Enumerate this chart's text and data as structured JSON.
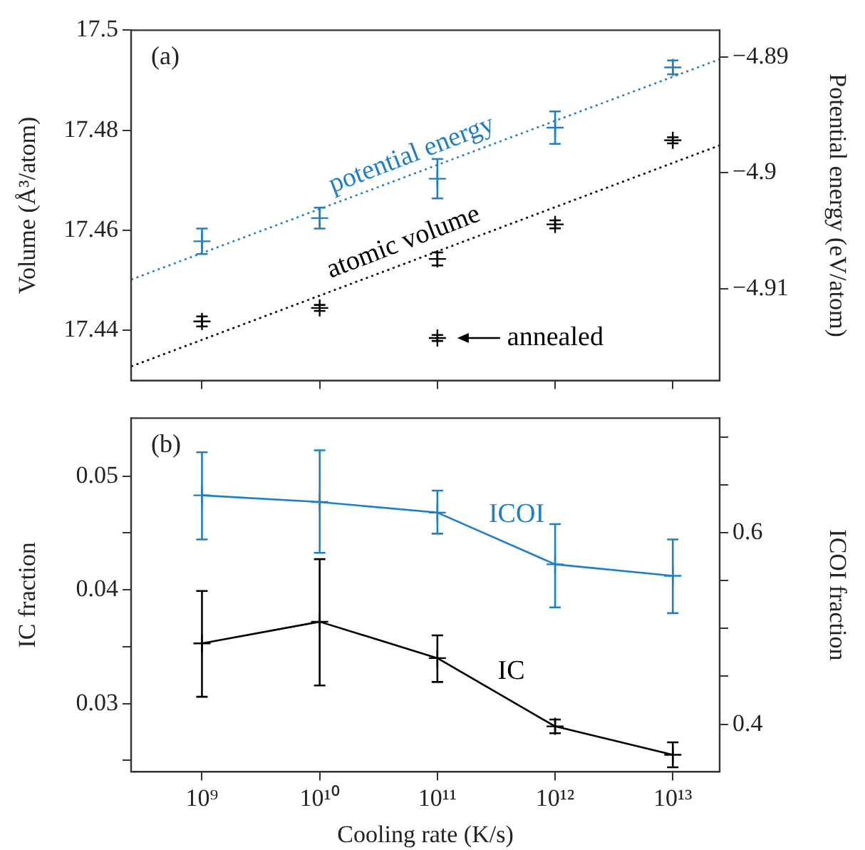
{
  "chart_data": [
    {
      "type": "scatter",
      "title": "(a)",
      "ylabel": "Volume (Å³/atom)",
      "y2label": "Potential energy (eV/atom)",
      "log": "x",
      "marker": "cross",
      "tick_labels": "y",
      "x": [
        1000000000.0,
        10000000000.0,
        100000000000.0,
        1000000000000.0,
        10000000000000.0
      ],
      "xlim": [
        250000000.0,
        25000000000000.0
      ],
      "xticks": [
        {
          "value": 1000000000.0,
          "label": null
        },
        {
          "value": 10000000000.0,
          "label": null
        },
        {
          "value": 100000000000.0,
          "label": null
        },
        {
          "value": 1000000000000.0,
          "label": null
        },
        {
          "value": 10000000000000.0,
          "label": null
        }
      ],
      "ylim": [
        17.43,
        17.5
      ],
      "yticks": [
        17.44,
        17.46,
        17.48,
        17.5
      ],
      "y2lim": [
        -4.9179,
        -4.8877
      ],
      "y2ticks": [
        {
          "value": -4.91,
          "label": "−4.91"
        },
        {
          "value": -4.9,
          "label": "−4.9"
        },
        {
          "value": -4.89,
          "label": "−4.89"
        }
      ],
      "series": [
        {
          "name": "atomic volume",
          "color": "#000000",
          "values": [
            17.4418,
            17.4445,
            17.4543,
            17.4612,
            17.478
          ],
          "errors": [
            0.001,
            0.0006,
            0.0013,
            0.0008,
            0.0006
          ]
        },
        {
          "name": "annealed",
          "color": "#000000",
          "x": [
            100000000000.0
          ],
          "values": [
            17.4385
          ],
          "errors": [
            0.0006
          ]
        },
        {
          "name": "potential energy",
          "color": "#1f7ec8",
          "axis": "y2",
          "values": [
            -4.9059,
            -4.9039,
            -4.9005,
            -4.8961,
            -4.8909
          ],
          "errors": [
            0.0011,
            0.0009,
            0.0017,
            0.0014,
            0.0006
          ]
        },
        {
          "type": "line",
          "color": "#000000",
          "marker": "none",
          "line_style": "dotted",
          "x": [
            250000000.0,
            25000000000000.0
          ],
          "values": [
            17.4328,
            17.477
          ]
        },
        {
          "type": "line",
          "color": "#1f7ec8",
          "marker": "none",
          "line_style": "dotted",
          "axis": "y2",
          "x": [
            250000000.0,
            25000000000000.0
          ],
          "values": [
            -4.9092,
            -4.8902
          ]
        }
      ]
    },
    {
      "type": "line",
      "title": "(b)",
      "xlabel": "Cooling rate (K/s)",
      "ylabel": "IC fraction",
      "y2label": "ICOI fraction",
      "log": "x",
      "marker": "cross",
      "x": [
        1000000000.0,
        10000000000.0,
        100000000000.0,
        1000000000000.0,
        10000000000000.0
      ],
      "xlim": [
        250000000.0,
        25000000000000.0
      ],
      "xticks": [
        {
          "value": 1000000000.0,
          "label": "10⁹"
        },
        {
          "value": 10000000000.0,
          "label": "10¹⁰"
        },
        {
          "value": 100000000000.0,
          "label": "10¹¹"
        },
        {
          "value": 1000000000000.0,
          "label": "10¹²"
        },
        {
          "value": 10000000000000.0,
          "label": "10¹³"
        }
      ],
      "ylim": [
        0.024,
        0.0551
      ],
      "yticks": [
        {
          "value": 0.025,
          "label": null
        },
        0.03,
        {
          "value": 0.035,
          "label": null
        },
        0.04,
        {
          "value": 0.045,
          "label": null
        },
        0.05
      ],
      "y2lim": [
        0.3503,
        0.7196
      ],
      "y2ticks": [
        0.4,
        {
          "value": 0.45,
          "label": null
        },
        {
          "value": 0.5,
          "label": null
        },
        {
          "value": 0.55,
          "label": null
        },
        0.6,
        {
          "value": 0.65,
          "label": null
        },
        {
          "value": 0.7,
          "label": null
        }
      ],
      "series": [
        {
          "name": "IC",
          "color": "#000000",
          "values": [
            0.0353,
            0.0372,
            0.034,
            0.028,
            0.0255
          ],
          "errors": [
            [
              0.0306,
              0.0399
            ],
            [
              0.0316,
              0.0427
            ],
            [
              0.0319,
              0.036
            ],
            [
              0.0274,
              0.0286
            ],
            [
              0.0244,
              0.0266
            ]
          ]
        },
        {
          "name": "ICOI",
          "color": "#1f7ec8",
          "axis": "y2",
          "values": [
            0.639,
            0.632,
            0.621,
            0.567,
            0.555
          ],
          "errors": [
            [
              0.593,
              0.684
            ],
            [
              0.579,
              0.686
            ],
            [
              0.599,
              0.644
            ],
            [
              0.522,
              0.609
            ],
            [
              0.516,
              0.593
            ]
          ]
        }
      ]
    }
  ]
}
